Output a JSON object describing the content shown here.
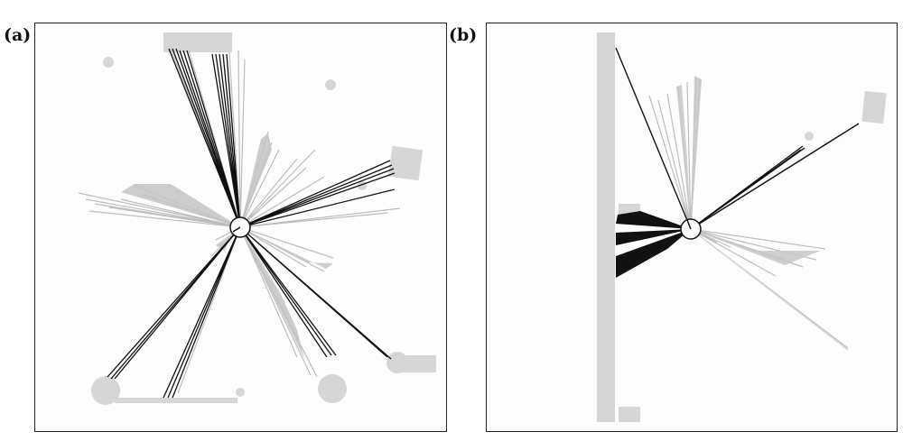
{
  "figure": {
    "panels": [
      {
        "id": "a",
        "label": "(a)"
      },
      {
        "id": "b",
        "label": "(b)"
      }
    ]
  },
  "colors": {
    "obstacle": "#d6d6d6",
    "ray_dark": "#111111",
    "ray_light": "#bdbdbd",
    "robot_fill": "#ffffff",
    "robot_stroke": "#111111",
    "frame": "#222222"
  },
  "icons": [
    "robot-marker-icon"
  ]
}
